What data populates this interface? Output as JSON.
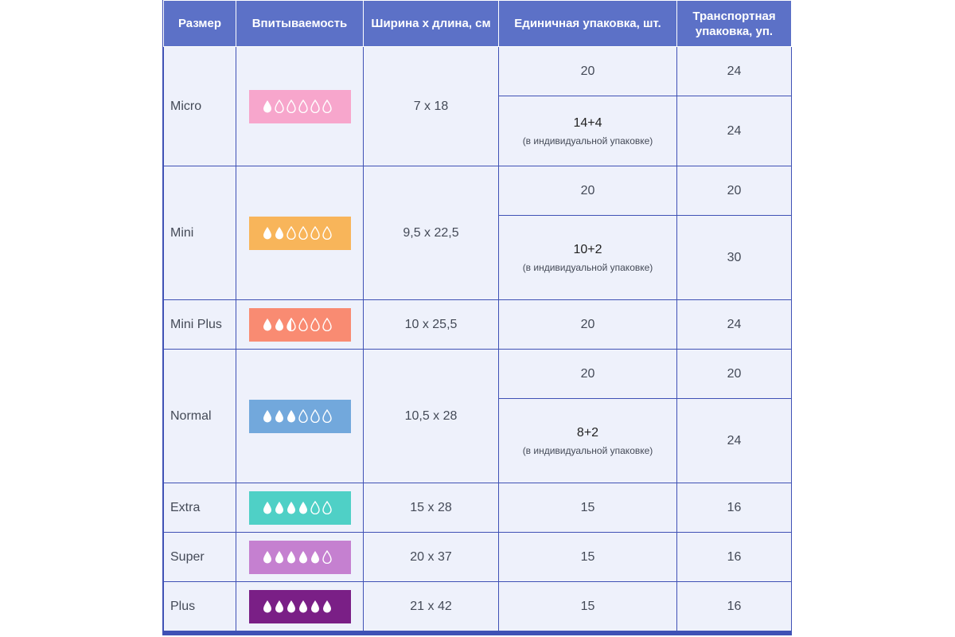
{
  "header": {
    "size": "Размер",
    "absorbency": "Впитываемость",
    "dimensions": "Ширина х длина, см",
    "unit_pack": "Единичная упаковка, шт.",
    "transport_pack": "Транспортная упаковка, уп."
  },
  "rows": [
    {
      "name": "Micro",
      "level": 1,
      "color": "#f7a6cc",
      "dims": "7 х 18",
      "packs": [
        {
          "qty": "20",
          "transport": "24"
        },
        {
          "qty": "14+4",
          "note": "(в индивидуальной упаковке)",
          "transport": "24"
        }
      ]
    },
    {
      "name": "Mini",
      "level": 2,
      "color": "#f8b55a",
      "dims": "9,5 х 22,5",
      "packs": [
        {
          "qty": "20",
          "transport": "20"
        },
        {
          "qty": "10+2",
          "note": "(в индивидуальной упаковке)",
          "transport": "30"
        }
      ]
    },
    {
      "name": "Mini Plus",
      "level": 2.5,
      "color": "#f98b72",
      "dims": "10 х 25,5",
      "packs": [
        {
          "qty": "20",
          "transport": "24"
        }
      ]
    },
    {
      "name": "Normal",
      "level": 3,
      "color": "#72a8dc",
      "dims": "10,5 х 28",
      "packs": [
        {
          "qty": "20",
          "transport": "20"
        },
        {
          "qty": "8+2",
          "note": "(в индивидуальной упаковке)",
          "transport": "24"
        }
      ]
    },
    {
      "name": "Extra",
      "level": 4,
      "color": "#4fd0c6",
      "dims": "15 х 28",
      "packs": [
        {
          "qty": "15",
          "transport": "16"
        }
      ]
    },
    {
      "name": "Super",
      "level": 5,
      "color": "#c580d0",
      "dims": "20 х 37",
      "packs": [
        {
          "qty": "15",
          "transport": "16"
        }
      ]
    },
    {
      "name": "Plus",
      "level": 6,
      "color": "#7a1f86",
      "dims": "21 х 42",
      "packs": [
        {
          "qty": "15",
          "transport": "16"
        }
      ]
    }
  ]
}
